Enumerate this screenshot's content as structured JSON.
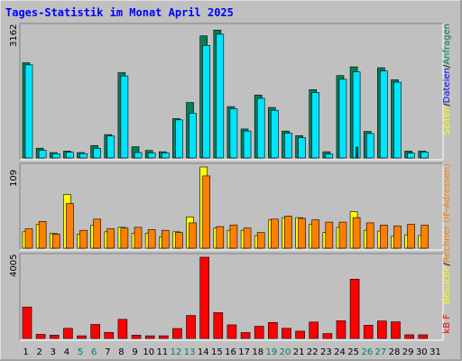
{
  "title": "Tages-Statistik im Monat April 2025",
  "colors": {
    "background": "#c0c0c0",
    "plot_background": "#c0c0c0",
    "title": "#0000ff",
    "weekday_label": "#000000",
    "weekend_label": "#00805c",
    "hits": "#00805c",
    "files": "#0000ff",
    "pages": "#ffff00",
    "visits": "#ff8000",
    "kbytes": "#ff0000",
    "separator": "#000000"
  },
  "side_labels": {
    "top": [
      {
        "text": "Anfragen",
        "color": "#00805c"
      },
      {
        "text": "/",
        "color": "#000000"
      },
      {
        "text": "Dateien",
        "color": "#0000ff"
      },
      {
        "text": "/",
        "color": "#000000"
      },
      {
        "text": "Seiten",
        "color": "#ffff00"
      }
    ],
    "middle": [
      {
        "text": "Rechner (IP-Adressen)",
        "color": "#ff8000"
      },
      {
        "text": "/",
        "color": "#000000"
      },
      {
        "text": "Besuche",
        "color": "#ffff00"
      }
    ],
    "bottom": [
      {
        "text": "kB F",
        "color": "#ff0000"
      }
    ]
  },
  "chart_data": [
    {
      "type": "bar",
      "panel": "top",
      "ymax_label": "3162",
      "ylim": [
        0,
        3162
      ],
      "categories": [
        "1",
        "2",
        "3",
        "4",
        "5",
        "6",
        "7",
        "8",
        "9",
        "10",
        "11",
        "12",
        "13",
        "14",
        "15",
        "16",
        "17",
        "18",
        "19",
        "20",
        "21",
        "22",
        "23",
        "24",
        "25",
        "26",
        "27",
        "28",
        "29",
        "30",
        "31"
      ],
      "series": [
        {
          "name": "Anfragen",
          "color": "#00805c",
          "values": [
            2300,
            235,
            130,
            165,
            130,
            300,
            565,
            2060,
            270,
            180,
            150,
            950,
            1340,
            2950,
            3090,
            1240,
            700,
            1520,
            1220,
            650,
            540,
            1650,
            150,
            1990,
            2200,
            640,
            2180,
            1890,
            165,
            165,
            0
          ]
        },
        {
          "name": "Dateien",
          "color": "#0000ff",
          "values": [
            2250,
            185,
            100,
            140,
            105,
            230,
            530,
            1980,
            130,
            120,
            120,
            920,
            1080,
            2720,
            2990,
            1190,
            650,
            1440,
            1150,
            600,
            490,
            1580,
            90,
            1900,
            2080,
            590,
            2100,
            1830,
            115,
            140,
            0
          ]
        },
        {
          "name": "Seiten",
          "color": "#ffff00",
          "values": [
            0,
            0,
            0,
            0,
            0,
            0,
            0,
            0,
            0,
            0,
            0,
            0,
            0,
            0,
            0,
            0,
            0,
            0,
            0,
            0,
            0,
            0,
            0,
            0,
            270,
            0,
            0,
            0,
            0,
            0,
            0
          ]
        }
      ]
    },
    {
      "type": "bar",
      "panel": "middle",
      "ymax_label": "109",
      "ylim": [
        0,
        109
      ],
      "categories": [
        "1",
        "2",
        "3",
        "4",
        "5",
        "6",
        "7",
        "8",
        "9",
        "10",
        "11",
        "12",
        "13",
        "14",
        "15",
        "16",
        "17",
        "18",
        "19",
        "20",
        "21",
        "22",
        "23",
        "24",
        "25",
        "26",
        "27",
        "28",
        "29",
        "30",
        "31"
      ],
      "series": [
        {
          "name": "Besuche",
          "color": "#ffff00",
          "values": [
            22,
            32,
            20,
            72,
            19,
            31,
            22,
            28,
            20,
            20,
            15,
            22,
            42,
            109,
            27,
            24,
            24,
            17,
            38,
            41,
            41,
            32,
            21,
            28,
            49,
            24,
            23,
            16,
            18,
            17,
            0
          ]
        },
        {
          "name": "Rechner (IP-Adressen)",
          "color": "#ff8000",
          "values": [
            26,
            36,
            19,
            60,
            24,
            39,
            26,
            27,
            28,
            25,
            24,
            21,
            34,
            97,
            29,
            31,
            27,
            21,
            39,
            43,
            40,
            38,
            35,
            35,
            41,
            34,
            31,
            30,
            32,
            31,
            0
          ]
        }
      ]
    },
    {
      "type": "bar",
      "panel": "bottom",
      "ymax_label": "4005",
      "ylim": [
        0,
        4005
      ],
      "categories": [
        "1",
        "2",
        "3",
        "4",
        "5",
        "6",
        "7",
        "8",
        "9",
        "10",
        "11",
        "12",
        "13",
        "14",
        "15",
        "16",
        "17",
        "18",
        "19",
        "20",
        "21",
        "22",
        "23",
        "24",
        "25",
        "26",
        "27",
        "28",
        "29",
        "30",
        "31"
      ],
      "series": [
        {
          "name": "kB F",
          "color": "#ff0000",
          "values": [
            1550,
            200,
            160,
            500,
            130,
            690,
            300,
            940,
            160,
            130,
            130,
            490,
            1130,
            4005,
            1270,
            670,
            290,
            600,
            790,
            500,
            360,
            810,
            240,
            870,
            2920,
            650,
            860,
            820,
            180,
            180,
            0
          ]
        }
      ]
    }
  ],
  "x_day_labels": [
    {
      "text": "1",
      "weekend": false
    },
    {
      "text": "2",
      "weekend": false
    },
    {
      "text": "3",
      "weekend": false
    },
    {
      "text": "4",
      "weekend": false
    },
    {
      "text": "5",
      "weekend": true
    },
    {
      "text": "6",
      "weekend": true
    },
    {
      "text": "7",
      "weekend": false
    },
    {
      "text": "8",
      "weekend": false
    },
    {
      "text": "9",
      "weekend": false
    },
    {
      "text": "10",
      "weekend": false
    },
    {
      "text": "11",
      "weekend": false
    },
    {
      "text": "12",
      "weekend": true
    },
    {
      "text": "13",
      "weekend": true
    },
    {
      "text": "14",
      "weekend": false
    },
    {
      "text": "15",
      "weekend": false
    },
    {
      "text": "16",
      "weekend": false
    },
    {
      "text": "17",
      "weekend": false
    },
    {
      "text": "18",
      "weekend": false
    },
    {
      "text": "19",
      "weekend": true
    },
    {
      "text": "20",
      "weekend": true
    },
    {
      "text": "21",
      "weekend": false
    },
    {
      "text": "22",
      "weekend": false
    },
    {
      "text": "23",
      "weekend": false
    },
    {
      "text": "24",
      "weekend": false
    },
    {
      "text": "25",
      "weekend": false
    },
    {
      "text": "26",
      "weekend": true
    },
    {
      "text": "27",
      "weekend": true
    },
    {
      "text": "28",
      "weekend": false
    },
    {
      "text": "29",
      "weekend": false
    },
    {
      "text": "30",
      "weekend": false
    },
    {
      "text": "31",
      "weekend": false
    }
  ]
}
